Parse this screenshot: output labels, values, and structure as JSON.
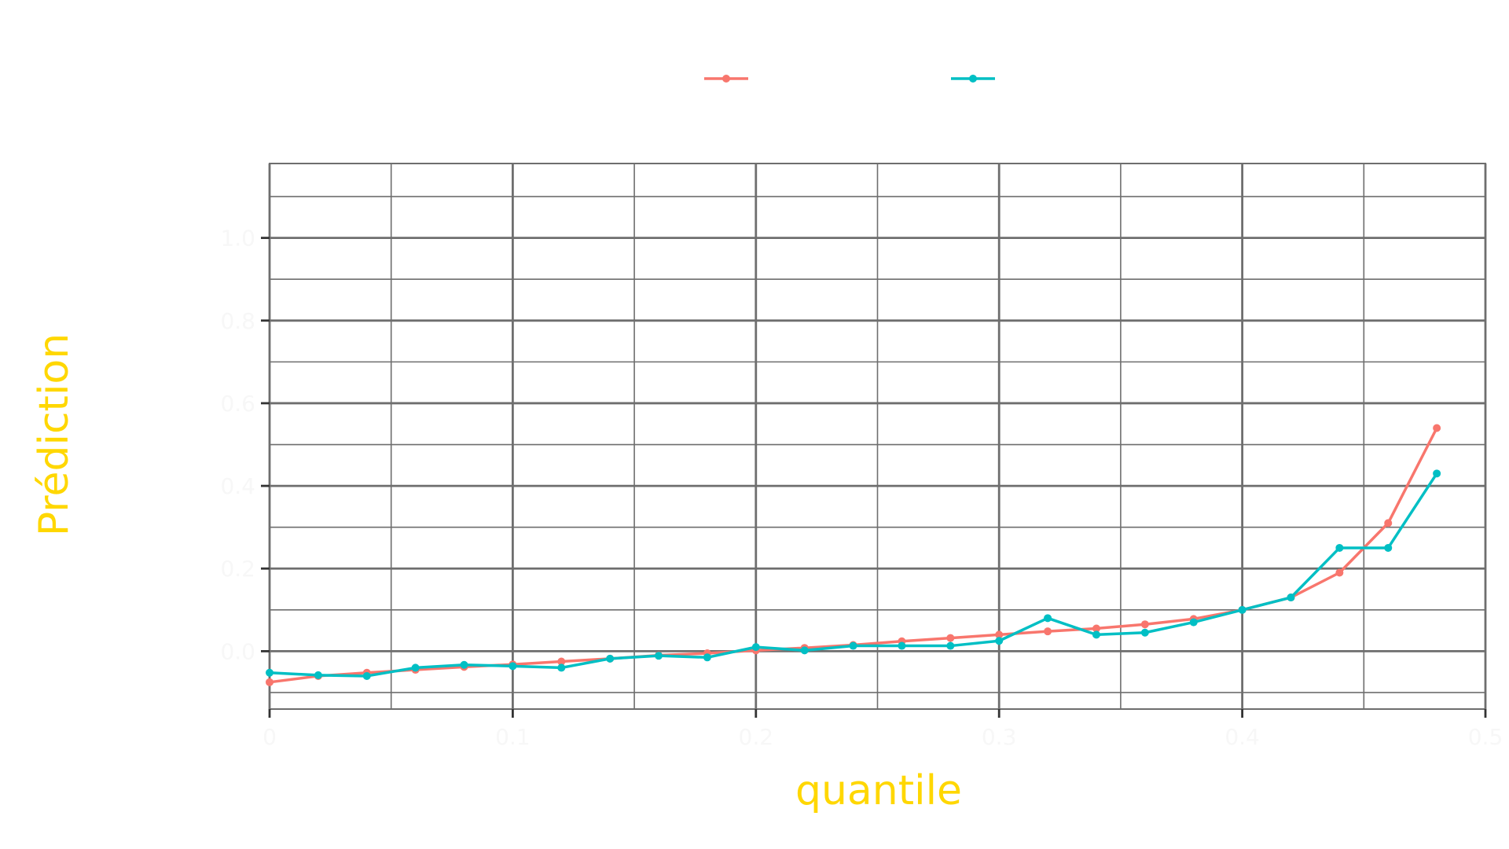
{
  "chart_data": {
    "type": "line",
    "title": "",
    "xlabel": "quantile",
    "ylabel": "Prédiction",
    "xlim": [
      0,
      0.5
    ],
    "ylim": [
      -0.14,
      1.18
    ],
    "x_ticks": [
      "0",
      "0.1",
      "0.2",
      "0.3",
      "0.4",
      "0.5"
    ],
    "y_ticks": [
      "0.0",
      "0.2",
      "0.4",
      "0.6",
      "0.8",
      "1.0"
    ],
    "grid": true,
    "legend_position": "top",
    "x": [
      0.0,
      0.02,
      0.04,
      0.06,
      0.08,
      0.1,
      0.12,
      0.14,
      0.16,
      0.18,
      0.2,
      0.22,
      0.24,
      0.26,
      0.28,
      0.3,
      0.32,
      0.34,
      0.36,
      0.38,
      0.4,
      0.42,
      0.44,
      0.46,
      0.48
    ],
    "series": [
      {
        "name": "",
        "color": "#F8766D",
        "values": [
          -0.075,
          -0.06,
          -0.052,
          -0.045,
          -0.038,
          -0.032,
          -0.025,
          -0.018,
          -0.01,
          -0.005,
          0.002,
          0.008,
          0.015,
          0.024,
          0.032,
          0.04,
          0.048,
          0.055,
          0.065,
          0.078,
          0.1,
          0.13,
          0.19,
          0.31,
          0.54
        ]
      },
      {
        "name": "",
        "color": "#00BFC4",
        "values": [
          -0.052,
          -0.058,
          -0.06,
          -0.04,
          -0.033,
          -0.036,
          -0.04,
          -0.018,
          -0.011,
          -0.015,
          0.01,
          0.002,
          0.013,
          0.013,
          0.013,
          0.025,
          0.08,
          0.04,
          0.045,
          0.07,
          0.1,
          0.13,
          0.25,
          0.25,
          0.43
        ]
      }
    ]
  },
  "colors": {
    "title_text": "#FFD700",
    "grid_major": "#6e6e6e",
    "grid_minor": "#6e6e6e",
    "tick_text": "#f7f7f7",
    "legend_text": "#f7f7f7"
  }
}
